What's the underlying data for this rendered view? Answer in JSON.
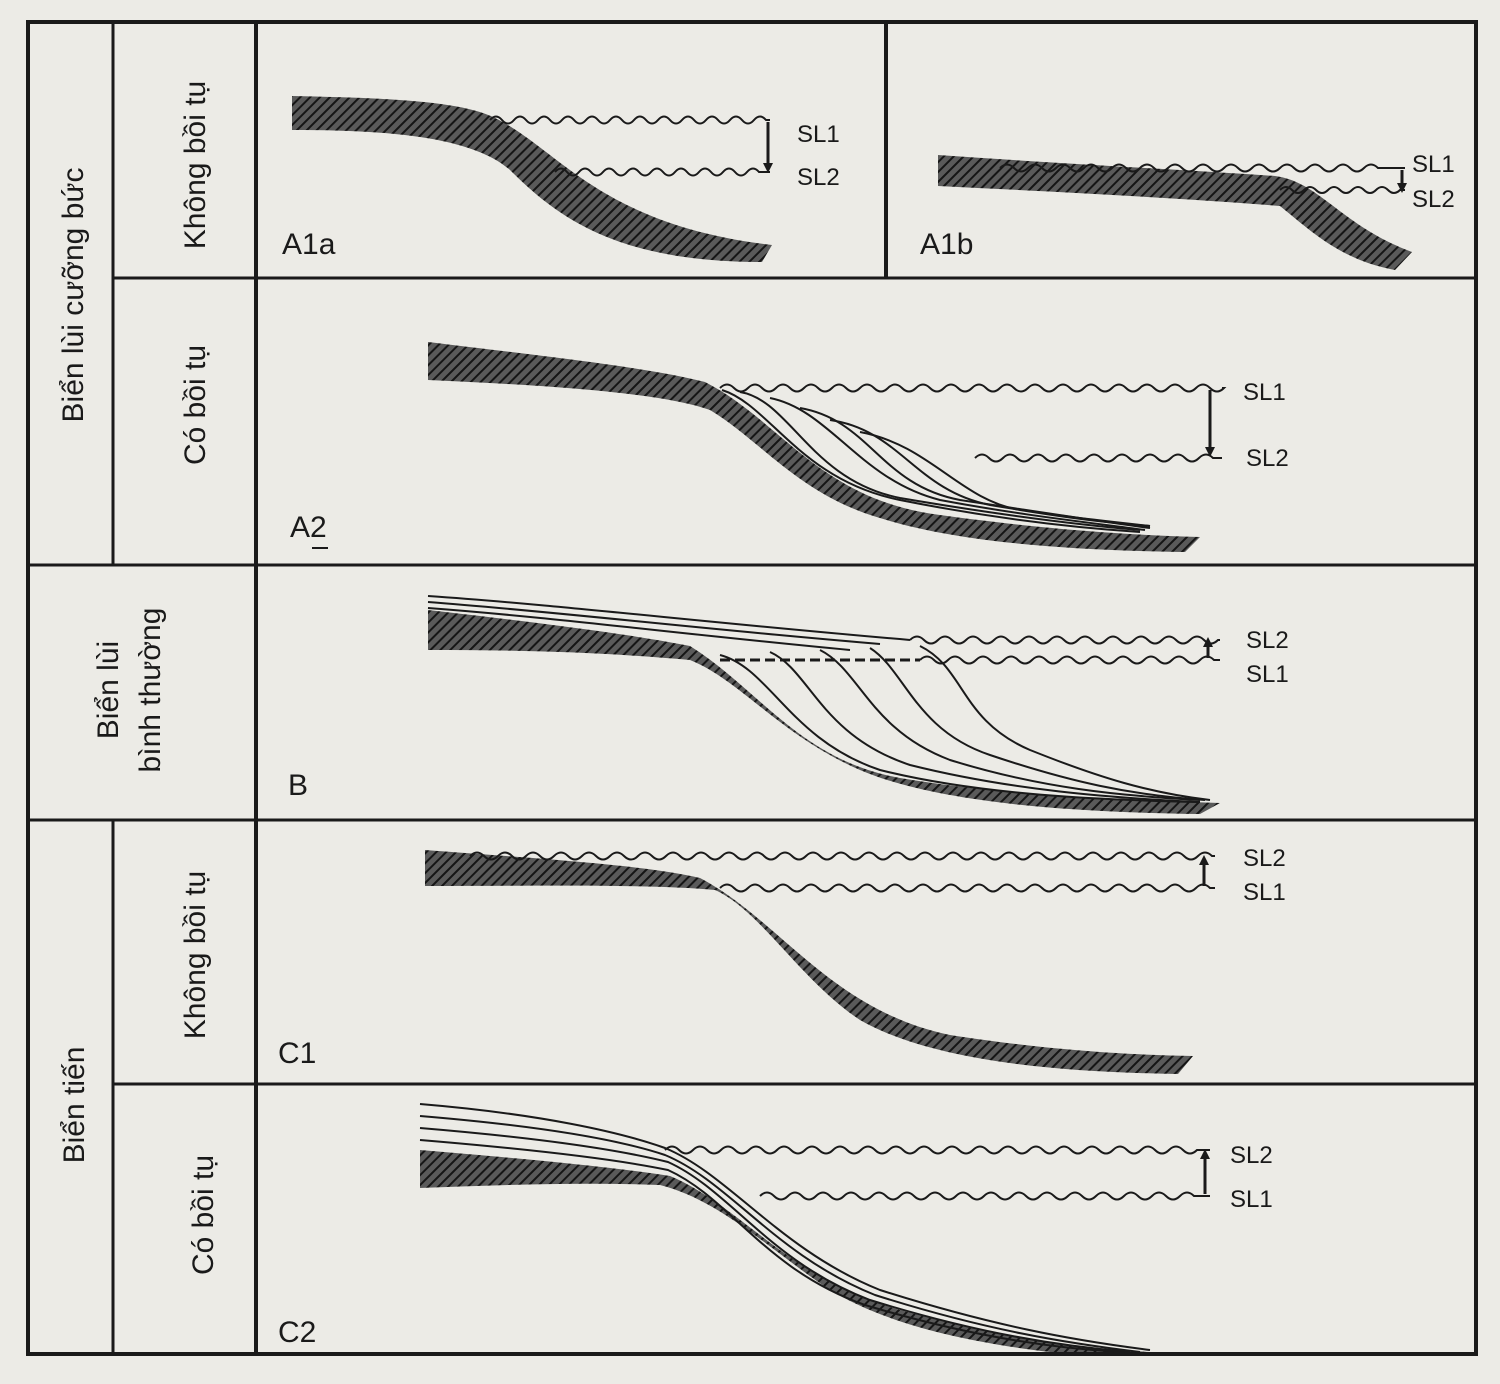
{
  "row_groups": {
    "forced": "Biển lùi cưỡng bức",
    "normal_line1": "Biển lùi",
    "normal_line2": "bình thường",
    "advance": "Biển tiến"
  },
  "sub_rows": {
    "no_sediment": "Không bồi tụ",
    "with_sediment": "Có bồi tụ"
  },
  "panels": {
    "a1a": {
      "label": "A1a",
      "upper": "SL1",
      "lower": "SL2"
    },
    "a1b": {
      "label": "A1b",
      "upper": "SL1",
      "lower": "SL2"
    },
    "a2": {
      "label": "A2",
      "upper": "SL1",
      "lower": "SL2"
    },
    "b": {
      "label": "B",
      "upper": "SL2",
      "lower": "SL1"
    },
    "c1": {
      "label": "C1",
      "upper": "SL2",
      "lower": "SL1"
    },
    "c2": {
      "label": "C2",
      "upper": "SL2",
      "lower": "SL1"
    }
  },
  "colors": {
    "background": "#ecebe6",
    "ink": "#1a1a1a",
    "hatch": "#3a3a3a"
  }
}
